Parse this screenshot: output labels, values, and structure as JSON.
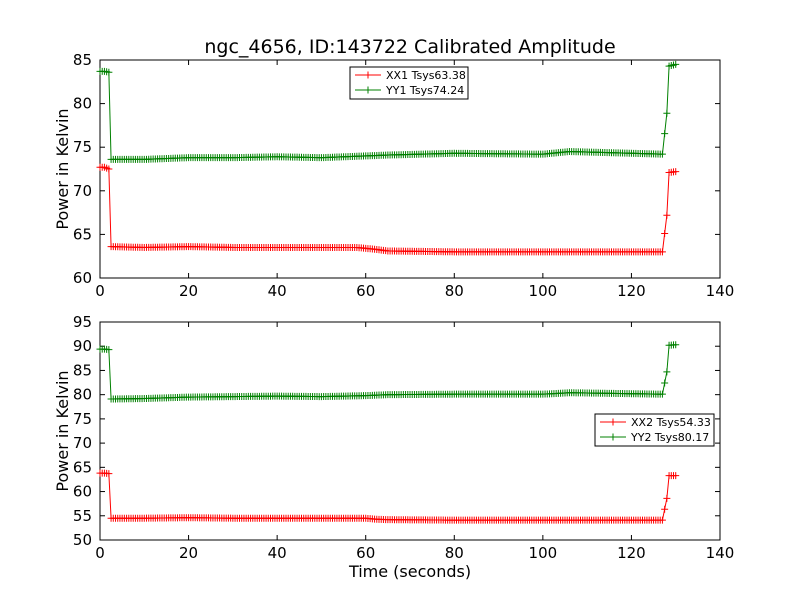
{
  "title": "ngc_4656, ID:143722 Calibrated Amplitude",
  "chart_data": [
    {
      "type": "line",
      "ylabel": "Power in Kelvin",
      "xlabel": "",
      "xlim": [
        0,
        140
      ],
      "ylim": [
        60,
        85
      ],
      "xticks": [
        0,
        20,
        40,
        60,
        80,
        100,
        120,
        140
      ],
      "yticks": [
        60,
        65,
        70,
        75,
        80,
        85
      ],
      "legend_position": "upper center",
      "grid": false,
      "series": [
        {
          "name": "XX1 Tsys63.38",
          "color": "#ff0000",
          "x": [
            0,
            1,
            2,
            2.5,
            10,
            20,
            30,
            40,
            50,
            58,
            62,
            65,
            80,
            100,
            120,
            127,
            128,
            128.5,
            130
          ],
          "y": [
            72.7,
            72.7,
            72.5,
            63.6,
            63.5,
            63.6,
            63.5,
            63.5,
            63.5,
            63.5,
            63.3,
            63.1,
            63.0,
            63.0,
            63.0,
            63.0,
            67.2,
            72.1,
            72.2
          ]
        },
        {
          "name": "YY1 Tsys74.24",
          "color": "#008000",
          "x": [
            0,
            1,
            2,
            2.5,
            10,
            20,
            30,
            40,
            50,
            60,
            65,
            80,
            100,
            106,
            120,
            127,
            128,
            128.5,
            130
          ],
          "y": [
            83.7,
            83.7,
            83.6,
            73.6,
            73.6,
            73.8,
            73.8,
            73.9,
            73.8,
            74.0,
            74.1,
            74.3,
            74.2,
            74.5,
            74.3,
            74.2,
            78.9,
            84.3,
            84.5
          ]
        }
      ]
    },
    {
      "type": "line",
      "ylabel": "Power in Kelvin",
      "xlabel": "Time (seconds)",
      "xlim": [
        0,
        140
      ],
      "ylim": [
        50,
        95
      ],
      "xticks": [
        0,
        20,
        40,
        60,
        80,
        100,
        120,
        140
      ],
      "yticks": [
        50,
        55,
        60,
        65,
        70,
        75,
        80,
        85,
        90,
        95
      ],
      "legend_position": "center right",
      "grid": false,
      "series": [
        {
          "name": "XX2 Tsys54.33",
          "color": "#ff0000",
          "x": [
            0,
            1,
            2,
            2.5,
            10,
            20,
            30,
            40,
            50,
            60,
            62,
            65,
            80,
            100,
            120,
            127,
            128,
            128.5,
            130
          ],
          "y": [
            63.8,
            63.8,
            63.7,
            54.5,
            54.5,
            54.6,
            54.5,
            54.5,
            54.5,
            54.5,
            54.3,
            54.2,
            54.1,
            54.1,
            54.1,
            54.1,
            58.6,
            63.3,
            63.3
          ]
        },
        {
          "name": "YY2 Tsys80.17",
          "color": "#008000",
          "x": [
            0,
            1,
            2,
            2.5,
            10,
            20,
            30,
            40,
            50,
            60,
            65,
            80,
            100,
            106,
            120,
            127,
            128,
            128.5,
            130
          ],
          "y": [
            89.4,
            89.4,
            89.3,
            79.1,
            79.2,
            79.5,
            79.6,
            79.7,
            79.6,
            79.8,
            80.0,
            80.1,
            80.1,
            80.4,
            80.2,
            80.1,
            84.7,
            90.2,
            90.3
          ]
        }
      ]
    }
  ]
}
